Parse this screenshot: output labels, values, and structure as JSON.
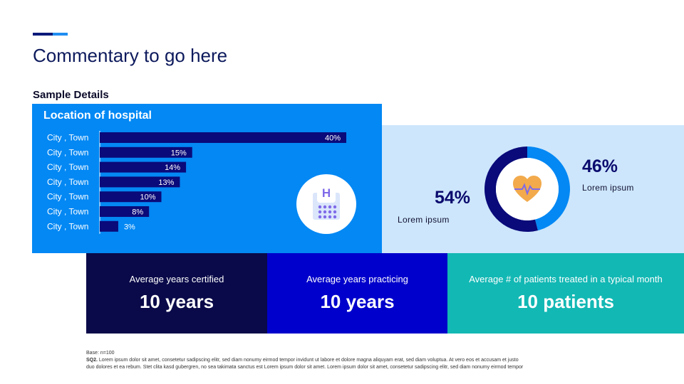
{
  "colors": {
    "navy": "#0a0a4a",
    "royal": "#0000cc",
    "teal": "#12b8b4",
    "bright_blue": "#0388f4",
    "light_blue": "#cde6fb",
    "bar_navy": "#0a0a7a",
    "accent_dark": "#0a1a7a",
    "accent_light": "#1f8ef1"
  },
  "header": {
    "title": "Commentary to go here",
    "section_label": "Sample Details"
  },
  "location_panel": {
    "title": "Location of hospital",
    "icon": "hospital-icon"
  },
  "chart_data": [
    {
      "type": "bar",
      "orientation": "horizontal",
      "title": "Location of hospital",
      "categories": [
        "City , Town",
        "City , Town",
        "City , Town",
        "City , Town",
        "City , Town",
        "City , Town",
        "City , Town"
      ],
      "values": [
        40,
        15,
        14,
        13,
        10,
        8,
        3
      ],
      "value_labels": [
        "40%",
        "15%",
        "14%",
        "13%",
        "10%",
        "8%",
        "3%"
      ],
      "xlim": [
        0,
        40
      ],
      "grid": false
    },
    {
      "type": "pie",
      "style": "donut",
      "slices": [
        {
          "label": "Lorem ipsum",
          "value": 54,
          "display": "54%",
          "color": "#0a0a7a"
        },
        {
          "label": "Lorem ipsum",
          "value": 46,
          "display": "46%",
          "color": "#0388f4"
        }
      ],
      "center_icon": "heart-pulse-icon"
    }
  ],
  "stats": [
    {
      "label": "Average years certified",
      "value": "10 years"
    },
    {
      "label": "Average years practicing",
      "value": "10 years"
    },
    {
      "label": "Average # of patients treated in a typical month",
      "value": "10 patients"
    }
  ],
  "footnote": {
    "base": "Base: n=100",
    "question_id": "SQ2.",
    "line1": "Lorem ipsum dolor sit amet, consetetur sadipscing elitr, sed diam nonumy eirmod tempor invidunt ut labore et dolore magna aliquyam erat, sed diam voluptua. At vero eos et accusam et justo",
    "line2": "duo dolores et ea rebum. Stet clita kasd gubergren, no sea takimata sanctus est Lorem ipsum dolor sit amet. Lorem ipsum dolor sit amet, consetetur sadipscing elitr, sed diam nonumy eirmod tempor"
  }
}
